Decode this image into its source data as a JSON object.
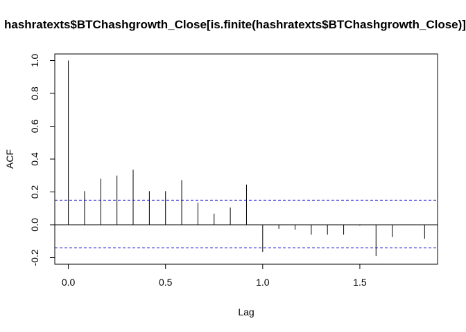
{
  "chart_data": {
    "type": "bar",
    "title": "hashratexts$BTChashgrowth_Close[is.finite(hashratexts$BTChashgrowth_Close)]",
    "xlabel": "Lag",
    "ylabel": "ACF",
    "xlim": [
      -0.07,
      1.9
    ],
    "ylim": [
      -0.24,
      1.04
    ],
    "xticks": [
      "0.0",
      "0.5",
      "1.0",
      "1.5"
    ],
    "yticks": [
      "-0.2",
      "0.0",
      "0.2",
      "0.4",
      "0.6",
      "0.8",
      "1.0"
    ],
    "grid": false,
    "confidence_bounds": [
      0.15,
      -0.14
    ],
    "confidence_color": "#0000cc",
    "lags": [
      0.0,
      0.0833,
      0.1667,
      0.25,
      0.3333,
      0.4167,
      0.5,
      0.5833,
      0.6667,
      0.75,
      0.8333,
      0.9167,
      1.0,
      1.0833,
      1.1667,
      1.25,
      1.3333,
      1.4167,
      1.5,
      1.5833,
      1.6667,
      1.75,
      1.8333
    ],
    "values": [
      1.0,
      0.205,
      0.28,
      0.3,
      0.335,
      0.205,
      0.205,
      0.272,
      0.135,
      0.068,
      0.105,
      0.245,
      -0.165,
      -0.025,
      -0.03,
      -0.06,
      -0.06,
      -0.06,
      -0.005,
      -0.19,
      -0.075,
      0.002,
      -0.085
    ]
  }
}
